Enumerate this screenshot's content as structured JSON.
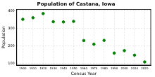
{
  "chart_data": {
    "type": "scatter",
    "title": "Population of Castana, Iowa",
    "x_label": "Census Year",
    "y_label": "Population",
    "x": [
      1900,
      1910,
      1920,
      1930,
      1940,
      1950,
      1960,
      1970,
      1980,
      1990,
      2000,
      2010,
      2020
    ],
    "values": [
      353,
      362,
      386,
      339,
      338,
      341,
      231,
      210,
      232,
      159,
      173,
      147,
      108
    ],
    "color": "#008000",
    "marker": "circle",
    "xlim": [
      1894,
      2026
    ],
    "xticks": [
      1900,
      1910,
      1920,
      1930,
      1940,
      1950,
      1960,
      1970,
      1980,
      1990,
      2000,
      2010,
      2020
    ],
    "ylim": [
      90,
      410
    ],
    "yticks": [
      100,
      200,
      300,
      400
    ],
    "grid": true
  }
}
